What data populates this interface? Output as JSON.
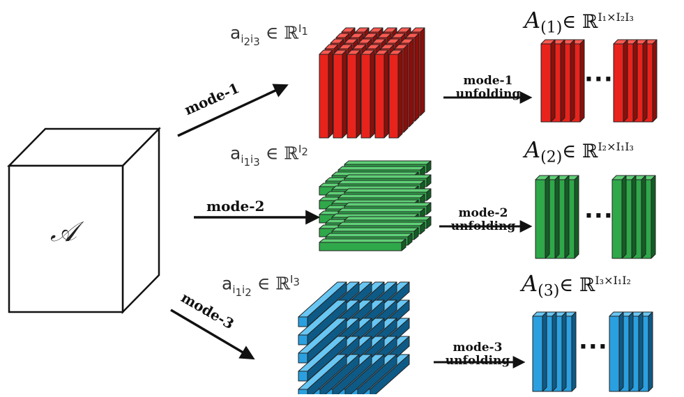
{
  "tensor": {
    "symbol": "𝒜"
  },
  "rows": [
    {
      "mode_label": "mode-1",
      "fiber": {
        "base": "a",
        "sub1": "i",
        "subsub1": "2",
        "sub2": "i",
        "subsub2": "3",
        "space": "ℝ",
        "sup_base": "I",
        "sup_sub": "1"
      },
      "unfolding": {
        "A": "A",
        "index": "(1)",
        "in": "∈",
        "space": "ℝ",
        "exponent": "I₁×I₂I₃"
      },
      "arrow_label_1": "mode-1",
      "arrow_label_2": "unfolding",
      "dots": "···",
      "color": "#e8231c",
      "dark": "#8a0f0a",
      "light": "#ff5a52"
    },
    {
      "mode_label": "mode-2",
      "fiber": {
        "base": "a",
        "sub1": "i",
        "subsub1": "1",
        "sub2": "i",
        "subsub2": "3",
        "space": "ℝ",
        "sup_base": "I",
        "sup_sub": "2"
      },
      "unfolding": {
        "A": "A",
        "index": "(2)",
        "in": "∈",
        "space": "ℝ",
        "exponent": "I₂×I₁I₃"
      },
      "arrow_label_1": "mode-2",
      "arrow_label_2": "unfolding",
      "dots": "···",
      "color": "#2fa84a",
      "dark": "#145c25",
      "light": "#5fd077"
    },
    {
      "mode_label": "mode-3",
      "fiber": {
        "base": "a",
        "sub1": "i",
        "subsub1": "1",
        "sub2": "i",
        "subsub2": "2",
        "space": "ℝ",
        "sup_base": "I",
        "sup_sub": "3"
      },
      "unfolding": {
        "A": "A",
        "index": "(3)",
        "in": "∈",
        "space": "ℝ",
        "exponent": "I₃×I₁I₂"
      },
      "arrow_label_1": "mode-3",
      "arrow_label_2": "unfolding",
      "dots": "···",
      "color": "#2aa0e0",
      "dark": "#0e5a86",
      "light": "#68c6f3"
    }
  ]
}
